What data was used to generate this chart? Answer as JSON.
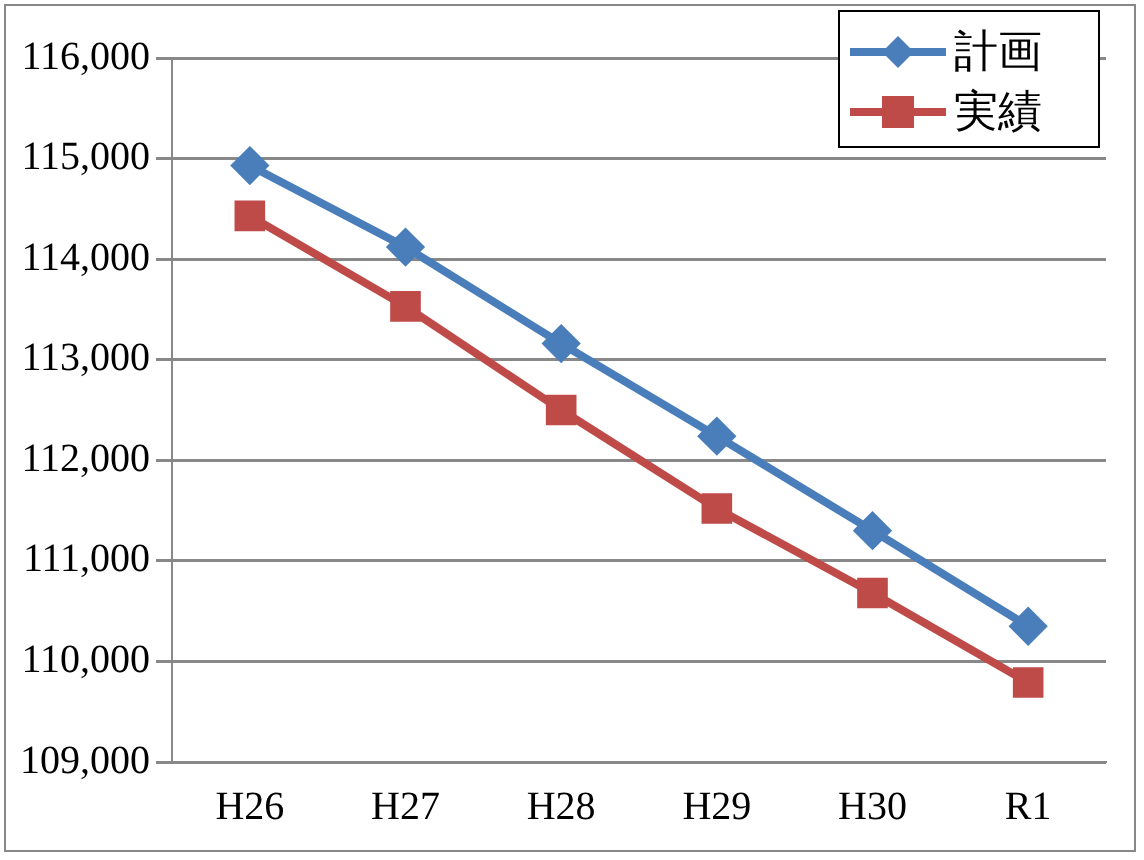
{
  "chart_data": {
    "type": "line",
    "categories": [
      "H26",
      "H27",
      "H28",
      "H29",
      "H30",
      "R1"
    ],
    "series": [
      {
        "name": "計画",
        "color": "#4a7ebb",
        "marker": "diamond",
        "values": [
          114930,
          114120,
          113160,
          112240,
          111300,
          110350
        ]
      },
      {
        "name": "実績",
        "color": "#be4b48",
        "marker": "square",
        "values": [
          114430,
          113530,
          112500,
          111520,
          110680,
          109790
        ]
      }
    ],
    "ylim": [
      109000,
      116000
    ],
    "yticks": [
      {
        "value": 109000,
        "label": "109,000"
      },
      {
        "value": 110000,
        "label": "110,000"
      },
      {
        "value": 111000,
        "label": "111,000"
      },
      {
        "value": 112000,
        "label": "112,000"
      },
      {
        "value": 113000,
        "label": "113,000"
      },
      {
        "value": 114000,
        "label": "114,000"
      },
      {
        "value": 115000,
        "label": "115,000"
      },
      {
        "value": 116000,
        "label": "116,000"
      }
    ],
    "grid": "y",
    "legend": "top right",
    "line_style": "solid"
  }
}
